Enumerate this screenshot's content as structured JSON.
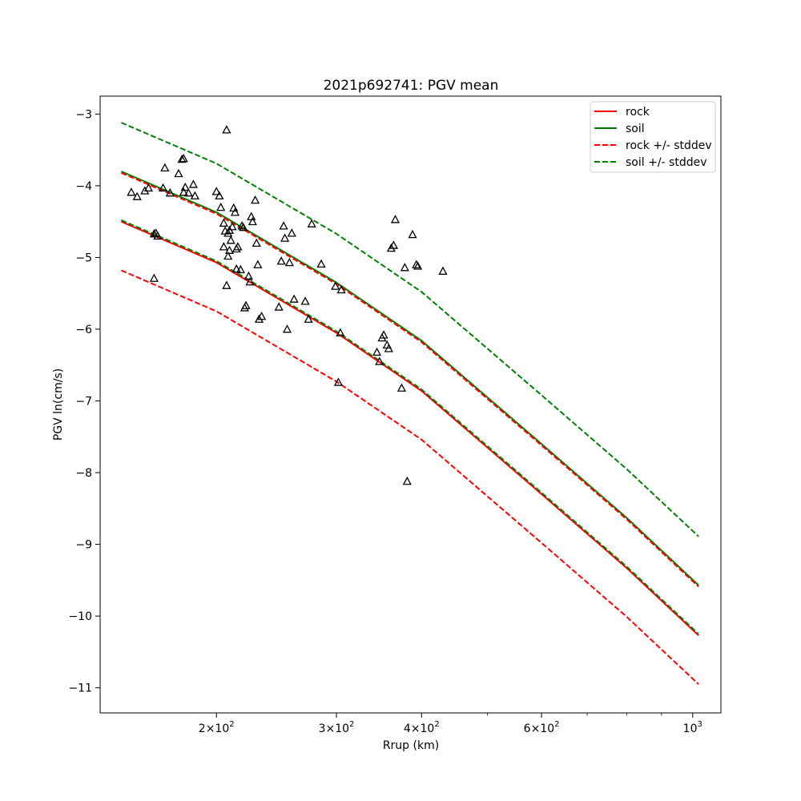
{
  "chart_data": {
    "type": "scatter",
    "title": "2021p692741: PGV mean",
    "xlabel": "Rrup (km)",
    "ylabel": "PGV ln(cm/s)",
    "xscale": "log",
    "xlim": [
      135,
      1100
    ],
    "ylim": [
      -11.35,
      -2.75
    ],
    "x_ticks": [
      {
        "value": 200,
        "base": "2",
        "exp": "2"
      },
      {
        "value": 300,
        "base": "3",
        "exp": "2"
      },
      {
        "value": 400,
        "base": "4",
        "exp": "2"
      },
      {
        "value": 600,
        "base": "6",
        "exp": "2"
      },
      {
        "value": 1000,
        "base": "10",
        "exp": "3"
      }
    ],
    "y_ticks": [
      -3,
      -4,
      -5,
      -6,
      -7,
      -8,
      -9,
      -10,
      -11
    ],
    "y_tick_labels": [
      "−3",
      "−4",
      "−5",
      "−6",
      "−7",
      "−8",
      "−9",
      "−10",
      "−11"
    ],
    "x_minor_ticks": [
      500,
      700,
      800,
      900
    ],
    "grid": false,
    "legend": {
      "position": "top-right",
      "entries": [
        {
          "label": "rock",
          "color": "#ff0000",
          "style": "solid"
        },
        {
          "label": "soil",
          "color": "#008000",
          "style": "solid"
        },
        {
          "label": "rock +/- stddev",
          "color": "#ff0000",
          "style": "dashed"
        },
        {
          "label": "soil +/- stddev",
          "color": "#008000",
          "style": "dashed"
        }
      ]
    },
    "lines": [
      {
        "name": "rock",
        "color": "#ff0000",
        "style": "solid",
        "x": [
          145,
          200,
          300,
          400,
          600,
          800,
          1020
        ],
        "y": [
          -4.5,
          -5.07,
          -6.05,
          -6.86,
          -8.3,
          -9.33,
          -10.27
        ]
      },
      {
        "name": "soil",
        "color": "#008000",
        "style": "solid",
        "x": [
          145,
          200,
          300,
          400,
          600,
          800,
          1020
        ],
        "y": [
          -3.8,
          -4.37,
          -5.35,
          -6.16,
          -7.6,
          -8.63,
          -9.57
        ]
      },
      {
        "name": "rock +/- stddev",
        "color": "#ff0000",
        "style": "dashed",
        "x": [
          145,
          200,
          300,
          400,
          600,
          800,
          1020
        ],
        "y": [
          -3.82,
          -4.39,
          -5.37,
          -6.18,
          -7.62,
          -8.65,
          -9.59
        ]
      },
      {
        "name": "rock +/- stddev",
        "color": "#ff0000",
        "style": "dashed",
        "x": [
          145,
          200,
          300,
          400,
          600,
          800,
          1020
        ],
        "y": [
          -5.18,
          -5.75,
          -6.73,
          -7.54,
          -8.98,
          -10.01,
          -10.95
        ]
      },
      {
        "name": "soil +/- stddev",
        "color": "#008000",
        "style": "dashed",
        "x": [
          145,
          200,
          300,
          400,
          600,
          800,
          1020
        ],
        "y": [
          -3.12,
          -3.69,
          -4.67,
          -5.48,
          -6.92,
          -7.95,
          -8.89
        ]
      },
      {
        "name": "soil +/- stddev",
        "color": "#008000",
        "style": "dashed",
        "x": [
          145,
          200,
          300,
          400,
          600,
          800,
          1020
        ],
        "y": [
          -4.48,
          -5.05,
          -6.03,
          -6.84,
          -8.28,
          -9.31,
          -10.25
        ]
      }
    ],
    "points": {
      "marker": "triangle",
      "color": "#000000",
      "x": [
        153,
        157,
        159,
        162,
        164,
        167,
        168,
        162,
        163,
        171,
        176,
        178,
        180,
        182,
        179,
        185,
        186,
        179,
        200,
        202,
        203,
        205,
        206,
        208,
        209,
        210,
        211,
        212,
        213,
        214,
        215,
        207,
        205,
        209,
        208,
        207,
        214,
        218,
        219,
        220,
        221,
        217,
        223,
        225,
        226,
        230,
        228,
        229,
        231,
        233,
        224,
        247,
        249,
        251,
        252,
        254,
        256,
        258,
        260,
        270,
        273,
        276,
        285,
        299,
        302,
        304,
        305,
        344,
        347,
        350,
        352,
        356,
        358,
        361,
        364,
        366,
        374,
        378,
        381,
        388,
        393,
        395,
        430,
        150
      ],
      "y": [
        -4.15,
        -4.07,
        -4.03,
        -4.67,
        -4.7,
        -4.03,
        -3.75,
        -5.29,
        -4.66,
        -4.1,
        -3.83,
        -3.63,
        -4.02,
        -4.1,
        -4.09,
        -3.98,
        -4.14,
        -3.62,
        -4.08,
        -4.14,
        -4.3,
        -4.52,
        -4.63,
        -4.66,
        -4.62,
        -4.76,
        -4.57,
        -4.31,
        -4.37,
        -4.88,
        -4.85,
        -3.22,
        -4.85,
        -4.9,
        -4.98,
        -5.39,
        -5.16,
        -4.56,
        -4.58,
        -5.7,
        -5.67,
        -5.17,
        -5.26,
        -4.43,
        -4.5,
        -5.1,
        -4.2,
        -4.8,
        -5.86,
        -5.82,
        -5.34,
        -5.69,
        -5.05,
        -4.56,
        -4.73,
        -6.0,
        -5.07,
        -4.66,
        -5.58,
        -5.61,
        -5.86,
        -4.53,
        -5.09,
        -5.4,
        -6.74,
        -6.05,
        -5.45,
        -6.32,
        -6.45,
        -6.12,
        -6.08,
        -6.22,
        -6.27,
        -4.87,
        -4.83,
        -4.47,
        -6.82,
        -5.14,
        -8.12,
        -4.68,
        -5.1,
        -5.12,
        -5.19,
        -4.09
      ]
    }
  }
}
